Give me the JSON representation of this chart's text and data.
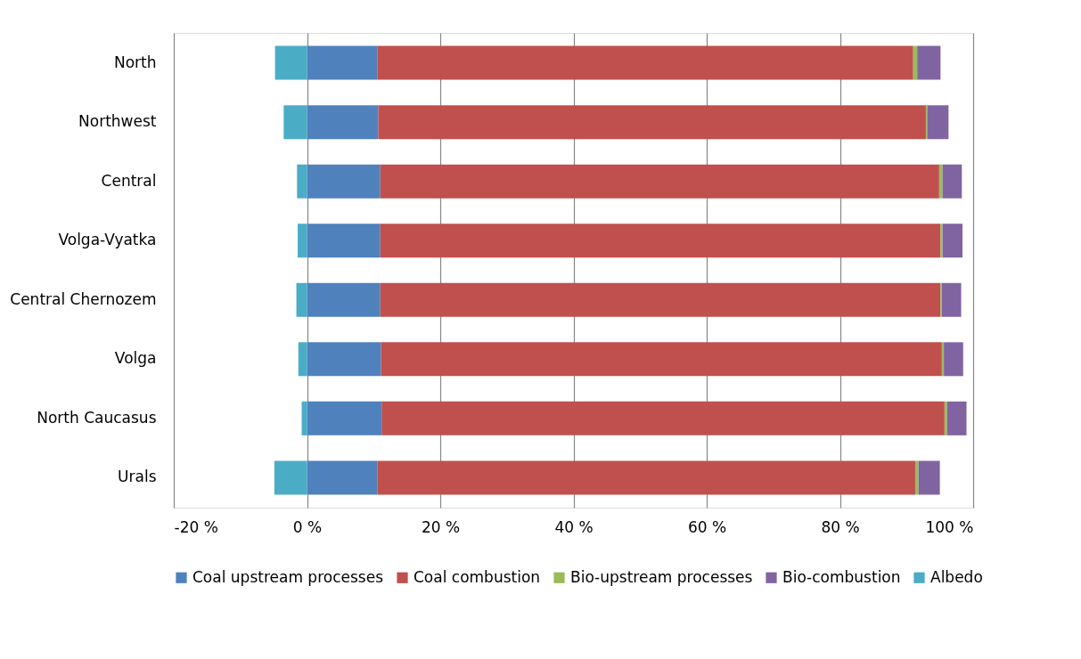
{
  "chart_data": {
    "type": "bar",
    "orientation": "horizontal",
    "stacked": true,
    "categories": [
      "North",
      "Northwest",
      "Central",
      "Volga-Vyatka",
      "Central Chernozem",
      "Volga",
      "North Caucasus",
      "Urals"
    ],
    "series": [
      {
        "name": "Coal upstream processes",
        "color": "#4f81bd",
        "values": [
          10.6,
          10.7,
          11.0,
          11.0,
          11.0,
          11.1,
          11.2,
          10.6
        ]
      },
      {
        "name": "Coal combustion",
        "color": "#c0504d",
        "values": [
          80.4,
          82.2,
          83.9,
          84.1,
          84.1,
          84.2,
          84.5,
          80.7
        ]
      },
      {
        "name": "Bio-upstream processes",
        "color": "#9bbb59",
        "values": [
          0.6,
          0.2,
          0.5,
          0.3,
          0.2,
          0.3,
          0.4,
          0.5
        ]
      },
      {
        "name": "Bio-combustion",
        "color": "#8064a2",
        "values": [
          3.5,
          3.2,
          2.9,
          3.0,
          2.9,
          2.9,
          2.9,
          3.2
        ]
      },
      {
        "name": "Albedo",
        "color": "#4bacc6",
        "values": [
          -4.8,
          -3.5,
          -1.5,
          -1.4,
          -1.6,
          -1.3,
          -0.8,
          -4.9
        ]
      }
    ],
    "xlim": [
      -20,
      100
    ],
    "xticks": [
      {
        "value": -20,
        "label": "-20 %"
      },
      {
        "value": 0,
        "label": "0 %"
      },
      {
        "value": 20,
        "label": "20 %"
      },
      {
        "value": 40,
        "label": "40 %"
      },
      {
        "value": 60,
        "label": "60 %"
      },
      {
        "value": 80,
        "label": "80 %"
      },
      {
        "value": 100,
        "label": "100 %"
      }
    ],
    "grid": "x",
    "legend": "bottom"
  }
}
